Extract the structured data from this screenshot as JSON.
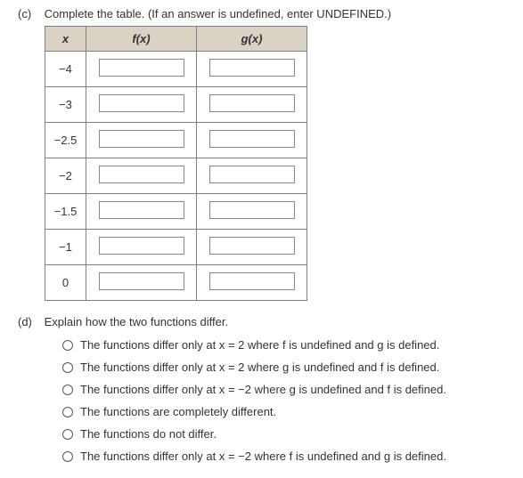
{
  "partC": {
    "letter": "(c)",
    "prompt": "Complete the table. (If an answer is undefined, enter UNDEFINED.)",
    "headers": {
      "x": "x",
      "fx": "f(x)",
      "gx": "g(x)"
    },
    "rows": [
      {
        "x": "−4"
      },
      {
        "x": "−3"
      },
      {
        "x": "−2.5"
      },
      {
        "x": "−2"
      },
      {
        "x": "−1.5"
      },
      {
        "x": "−1"
      },
      {
        "x": "0"
      }
    ]
  },
  "partD": {
    "letter": "(d)",
    "prompt": "Explain how the two functions differ.",
    "options": [
      "The functions differ only at x = 2 where f is undefined and g is defined.",
      "The functions differ only at x = 2 where g is undefined and f is defined.",
      "The functions differ only at x = −2 where g is undefined and f is defined.",
      "The functions are completely different.",
      "The functions do not differ.",
      "The functions differ only at x = −2 where f is undefined and g is defined."
    ]
  },
  "style": {
    "header_bg": "#d9d2c5",
    "border_color": "#808080",
    "text_color": "#333333",
    "input_border": "#888888",
    "font_size_body": 13
  }
}
